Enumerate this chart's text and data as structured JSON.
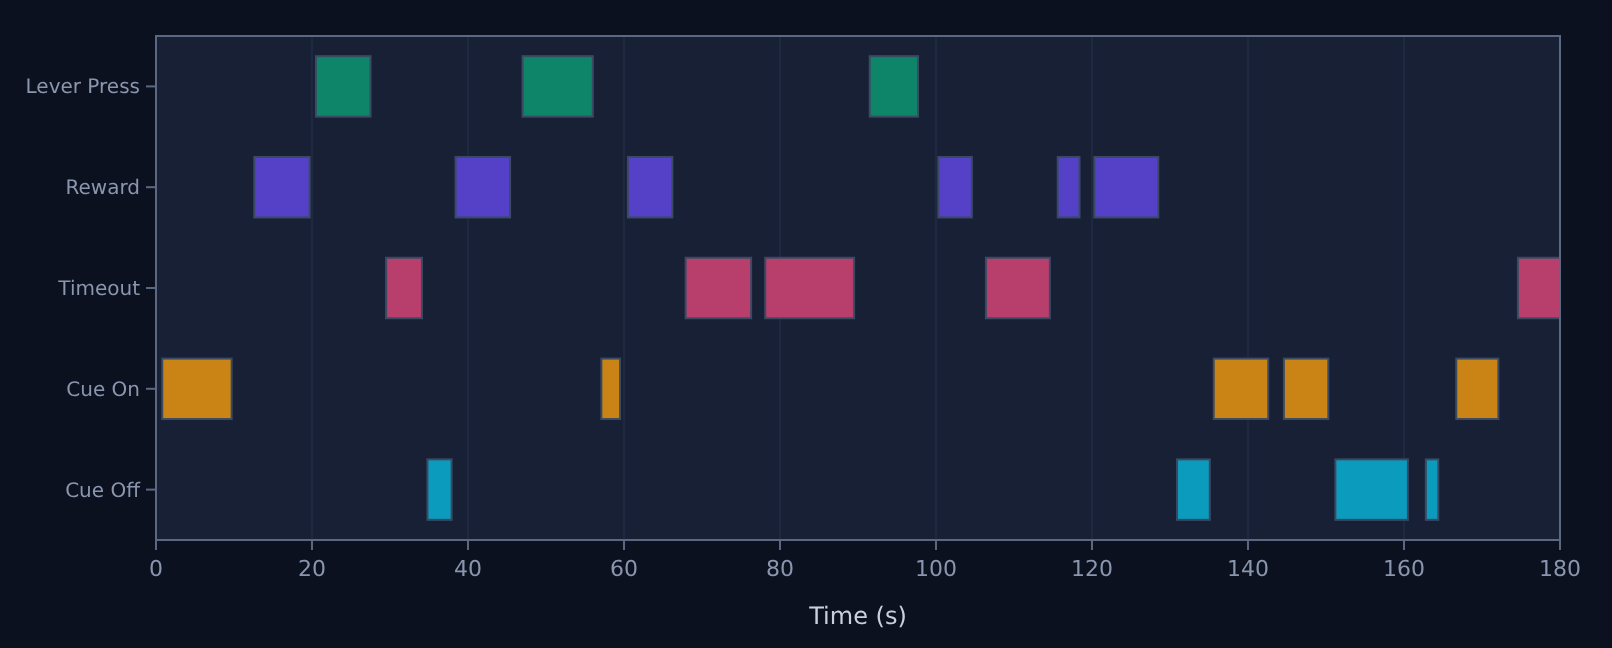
{
  "chart_data": {
    "type": "bar",
    "orientation": "horizontal",
    "xlabel": "Time (s)",
    "categories": [
      "Lever Press",
      "Reward",
      "Timeout",
      "Cue On",
      "Cue Off"
    ],
    "series": [
      {
        "colors": [
          "#0e8468",
          "#5540c8",
          "#b83f6c",
          "#c98415",
          "#0b9bbd"
        ],
        "base": [
          20.5,
          12.6,
          29.5,
          0.8,
          34.8
        ],
        "values": [
          7,
          7.1,
          4.6,
          8.9,
          3.1
        ]
      },
      {
        "colors": [
          "#0e8468",
          "#5540c8",
          "#b83f6c",
          "#c98415",
          "#0b9bbd"
        ],
        "base": [
          47,
          38.4,
          67.9,
          57.1,
          130.9
        ],
        "values": [
          9,
          7,
          8.4,
          2.4,
          4.2
        ]
      },
      {
        "colors": [
          "#0e8468",
          "#5540c8",
          "#b83f6c",
          "#c98415",
          "#0b9bbd"
        ],
        "base": [
          91.5,
          60.5,
          78.1,
          135.6,
          151.2
        ],
        "values": [
          6.2,
          5.7,
          11.4,
          7,
          9.3
        ]
      },
      {
        "colors": [
          null,
          "#5540c8",
          "#b83f6c",
          "#c98415",
          "#0b9bbd"
        ],
        "base": [
          null,
          100.3,
          106.4,
          144.6,
          162.8
        ],
        "values": [
          null,
          4.3,
          8.2,
          5.7,
          1.6
        ]
      },
      {
        "colors": [
          null,
          "#5540c8",
          "#b83f6c",
          "#c98415",
          null
        ],
        "base": [
          null,
          115.6,
          174.6,
          166.7,
          null
        ],
        "values": [
          null,
          2.8,
          5.4,
          5.4,
          null
        ]
      },
      {
        "colors": [
          null,
          "#5540c8",
          null,
          null,
          null
        ],
        "base": [
          null,
          120.3,
          null,
          null,
          null
        ],
        "values": [
          null,
          8.2,
          null,
          null,
          null
        ]
      }
    ],
    "xlim": [
      0,
      180
    ],
    "xticks": [
      0,
      20,
      40,
      60,
      80,
      100,
      120,
      140,
      160,
      180
    ],
    "grid": "x"
  }
}
